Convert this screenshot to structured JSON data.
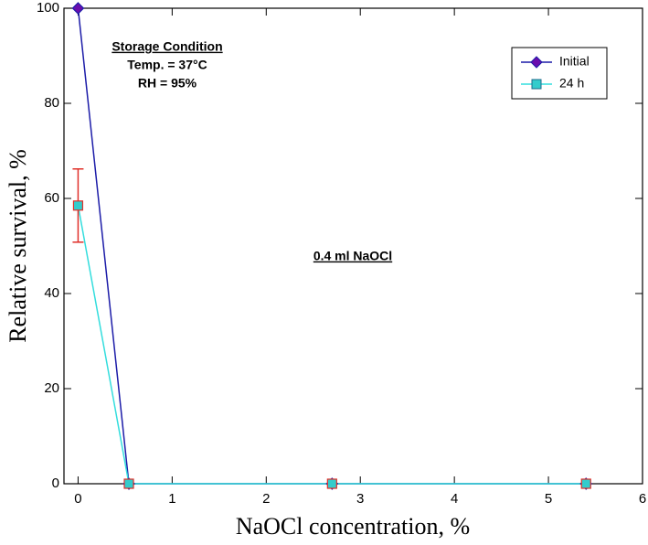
{
  "chart_data": {
    "type": "line",
    "x_label": "NaOCl concentration, %",
    "y_label": "Relative survival, %",
    "annotations": [
      "Storage Condition",
      "Temp. = 37°C",
      "RH = 95%",
      "0.4 ml NaOCl"
    ],
    "x": [
      0,
      0.54,
      2.7,
      5.4
    ],
    "series": [
      {
        "name": "Initial",
        "color": "#1c1ca8",
        "marker_color": "#6a0dad",
        "marker": "diamond",
        "values": [
          100,
          0,
          0,
          0
        ]
      },
      {
        "name": "24 h",
        "color": "#33dddd",
        "marker_color": "#33cccc",
        "marker": "square",
        "values": [
          58.5,
          0,
          0,
          0
        ],
        "errors": [
          7.7,
          null,
          null,
          null
        ],
        "error_color": "#e0302a"
      }
    ],
    "xlim": [
      -0.15,
      6
    ],
    "xticks": [
      0,
      1,
      2,
      3,
      4,
      5,
      6
    ],
    "ylim": [
      0,
      100
    ],
    "yticks": [
      0,
      20,
      40,
      60,
      80,
      100
    ],
    "legend": "upper right"
  }
}
